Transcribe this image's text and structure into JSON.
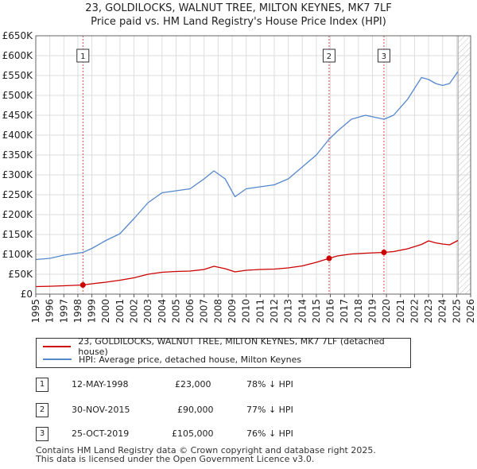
{
  "title_line1": "23, GOLDILOCKS, WALNUT TREE, MILTON KEYNES, MK7 7LF",
  "title_line2": "Price paid vs. HM Land Registry's House Price Index (HPI)",
  "chart_data": {
    "type": "line",
    "xlim": [
      1995,
      2026
    ],
    "ylim": [
      0,
      650000
    ],
    "x_ticks": [
      "1995",
      "1996",
      "1997",
      "1998",
      "1999",
      "2000",
      "2001",
      "2002",
      "2003",
      "2004",
      "2005",
      "2006",
      "2007",
      "2008",
      "2009",
      "2010",
      "2011",
      "2012",
      "2013",
      "2014",
      "2015",
      "2016",
      "2017",
      "2018",
      "2019",
      "2020",
      "2021",
      "2022",
      "2023",
      "2024",
      "2025",
      "2026"
    ],
    "y_ticks": [
      {
        "value": 0,
        "label": "£0"
      },
      {
        "value": 50000,
        "label": "£50K"
      },
      {
        "value": 100000,
        "label": "£100K"
      },
      {
        "value": 150000,
        "label": "£150K"
      },
      {
        "value": 200000,
        "label": "£200K"
      },
      {
        "value": 250000,
        "label": "£250K"
      },
      {
        "value": 300000,
        "label": "£300K"
      },
      {
        "value": 350000,
        "label": "£350K"
      },
      {
        "value": 400000,
        "label": "£400K"
      },
      {
        "value": 450000,
        "label": "£450K"
      },
      {
        "value": 500000,
        "label": "£500K"
      },
      {
        "value": 550000,
        "label": "£550K"
      },
      {
        "value": 600000,
        "label": "£600K"
      },
      {
        "value": 650000,
        "label": "£650K"
      }
    ],
    "grid": true,
    "hatched_region_from": 2025.1,
    "series": [
      {
        "name": "23, GOLDILOCKS, WALNUT TREE, MILTON KEYNES, MK7 7LF (detached house)",
        "color": "#cc0000",
        "points": [
          [
            1995.0,
            19000
          ],
          [
            1996.0,
            19800
          ],
          [
            1997.0,
            21000
          ],
          [
            1998.36,
            23000
          ],
          [
            1999.0,
            26000
          ],
          [
            2000.0,
            30000
          ],
          [
            2001.0,
            35000
          ],
          [
            2002.0,
            41000
          ],
          [
            2003.0,
            50000
          ],
          [
            2004.0,
            55000
          ],
          [
            2005.0,
            57000
          ],
          [
            2006.0,
            58000
          ],
          [
            2007.0,
            62000
          ],
          [
            2007.7,
            70000
          ],
          [
            2008.5,
            64000
          ],
          [
            2009.2,
            56000
          ],
          [
            2010.0,
            60000
          ],
          [
            2011.0,
            62000
          ],
          [
            2012.0,
            63000
          ],
          [
            2013.0,
            66000
          ],
          [
            2014.0,
            71000
          ],
          [
            2015.0,
            80000
          ],
          [
            2015.91,
            90000
          ],
          [
            2016.5,
            96000
          ],
          [
            2017.5,
            101000
          ],
          [
            2018.5,
            103000
          ],
          [
            2019.82,
            105000
          ],
          [
            2020.5,
            107000
          ],
          [
            2021.5,
            114000
          ],
          [
            2022.5,
            125000
          ],
          [
            2023.0,
            134000
          ],
          [
            2023.5,
            129000
          ],
          [
            2024.0,
            126000
          ],
          [
            2024.5,
            124000
          ],
          [
            2025.1,
            135000
          ]
        ]
      },
      {
        "name": "HPI: Average price, detached house, Milton Keynes",
        "color": "#5588cc",
        "points": [
          [
            1995.0,
            87000
          ],
          [
            1996.0,
            90000
          ],
          [
            1997.0,
            98000
          ],
          [
            1998.36,
            105000
          ],
          [
            1999.0,
            115000
          ],
          [
            2000.0,
            135000
          ],
          [
            2001.0,
            152000
          ],
          [
            2002.0,
            190000
          ],
          [
            2003.0,
            230000
          ],
          [
            2004.0,
            255000
          ],
          [
            2005.0,
            260000
          ],
          [
            2006.0,
            265000
          ],
          [
            2007.0,
            290000
          ],
          [
            2007.7,
            310000
          ],
          [
            2008.5,
            290000
          ],
          [
            2009.2,
            245000
          ],
          [
            2010.0,
            265000
          ],
          [
            2011.0,
            270000
          ],
          [
            2012.0,
            275000
          ],
          [
            2013.0,
            290000
          ],
          [
            2014.0,
            320000
          ],
          [
            2015.0,
            350000
          ],
          [
            2015.91,
            390000
          ],
          [
            2016.5,
            410000
          ],
          [
            2017.5,
            440000
          ],
          [
            2018.5,
            450000
          ],
          [
            2019.82,
            440000
          ],
          [
            2020.5,
            450000
          ],
          [
            2021.5,
            490000
          ],
          [
            2022.5,
            545000
          ],
          [
            2023.0,
            540000
          ],
          [
            2023.5,
            530000
          ],
          [
            2024.0,
            525000
          ],
          [
            2024.5,
            530000
          ],
          [
            2025.1,
            560000
          ]
        ]
      }
    ],
    "markers": [
      {
        "label": "1",
        "x": 1998.36,
        "y": 23000
      },
      {
        "label": "2",
        "x": 2015.91,
        "y": 90000
      },
      {
        "label": "3",
        "x": 2019.82,
        "y": 105000
      }
    ]
  },
  "legend": {
    "house": "23, GOLDILOCKS, WALNUT TREE, MILTON KEYNES, MK7 7LF (detached house)",
    "hpi": "HPI: Average price, detached house, Milton Keynes"
  },
  "transactions": [
    {
      "num": "1",
      "date": "12-MAY-1998",
      "price": "£23,000",
      "hpi": "78% ↓ HPI"
    },
    {
      "num": "2",
      "date": "30-NOV-2015",
      "price": "£90,000",
      "hpi": "77% ↓ HPI"
    },
    {
      "num": "3",
      "date": "25-OCT-2019",
      "price": "£105,000",
      "hpi": "76% ↓ HPI"
    }
  ],
  "footer_line1": "Contains HM Land Registry data © Crown copyright and database right 2025.",
  "footer_line2": "This data is licensed under the Open Government Licence v3.0."
}
